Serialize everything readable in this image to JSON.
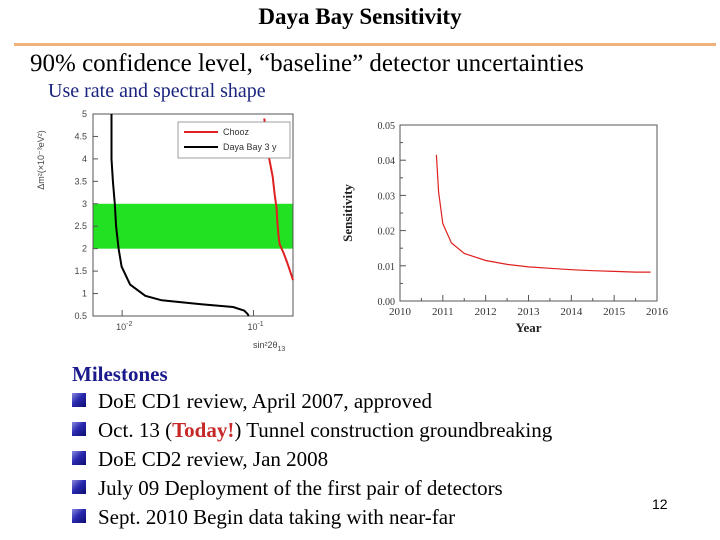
{
  "slide": {
    "title": "Daya Bay Sensitivity",
    "subtitle": "90% confidence level, “baseline” detector uncertainties",
    "use_line": "Use rate and spectral shape",
    "page_number": "12"
  },
  "colors": {
    "red_curve": "#e02020",
    "black_curve": "#000000",
    "band": "#22e022",
    "title_rule": "#f0b27a",
    "heading": "#1a1a8c",
    "today": "#c62828"
  },
  "milestones": {
    "heading": "Milestones",
    "items": [
      {
        "text": "DoE CD1 review, April 2007, approved"
      },
      {
        "before": "Oct. 13 (",
        "highlight": "Today!",
        "after": ") Tunnel construction groundbreaking"
      },
      {
        "text": "DoE CD2 review, Jan 2008"
      },
      {
        "text": "July 09 Deployment of the first pair of detectors"
      },
      {
        "text": "Sept. 2010 Begin data taking with near-far"
      }
    ]
  },
  "chart_data": [
    {
      "type": "line",
      "xscale": "log",
      "xlim": [
        0.006,
        0.2
      ],
      "ylim": [
        0.5,
        5
      ],
      "xlabel": "sin²2θ",
      "xlabel_sub": "13",
      "ylabel": "Δm²(×10⁻³eV²)",
      "y_ticks": [
        "0.5",
        "1",
        "1.5",
        "2",
        "2.5",
        "3",
        "3.5",
        "4",
        "4.5",
        "5"
      ],
      "y_tick_values": [
        0.5,
        1,
        1.5,
        2,
        2.5,
        3,
        3.5,
        4,
        4.5,
        5
      ],
      "x_tick_labels": [
        {
          "value": 0.01,
          "label": "10",
          "exp": "-2"
        },
        {
          "value": 0.1,
          "label": "10",
          "exp": "-1"
        }
      ],
      "band": {
        "y_from": 2.0,
        "y_to": 3.0
      },
      "legend_position": "top-right",
      "series": [
        {
          "name": "Chooz",
          "color": "#e02020",
          "points": [
            [
              0.121,
              4.9
            ],
            [
              0.125,
              4.5
            ],
            [
              0.13,
              4.1
            ],
            [
              0.14,
              3.6
            ],
            [
              0.145,
              3.2
            ],
            [
              0.15,
              2.9
            ],
            [
              0.152,
              2.6
            ],
            [
              0.155,
              2.3
            ],
            [
              0.158,
              2.1
            ],
            [
              0.17,
              1.9
            ],
            [
              0.18,
              1.7
            ],
            [
              0.19,
              1.5
            ],
            [
              0.2,
              1.3
            ]
          ]
        },
        {
          "name": "Daya Bay 3 y",
          "color": "#000000",
          "points": [
            [
              0.0083,
              5.0
            ],
            [
              0.0083,
              4.0
            ],
            [
              0.0085,
              3.5
            ],
            [
              0.0088,
              3.0
            ],
            [
              0.009,
              2.5
            ],
            [
              0.0094,
              2.0
            ],
            [
              0.0099,
              1.6
            ],
            [
              0.0115,
              1.2
            ],
            [
              0.015,
              0.95
            ],
            [
              0.02,
              0.85
            ],
            [
              0.04,
              0.76
            ],
            [
              0.07,
              0.7
            ],
            [
              0.085,
              0.62
            ],
            [
              0.09,
              0.55
            ],
            [
              0.092,
              0.5
            ]
          ]
        }
      ]
    },
    {
      "type": "line",
      "xlabel": "Year",
      "ylabel": "Sensitivity",
      "xlim": [
        2010,
        2016
      ],
      "ylim": [
        0,
        0.05
      ],
      "x_ticks": [
        2010,
        2011,
        2012,
        2013,
        2014,
        2015,
        2016
      ],
      "y_ticks": [
        0.0,
        0.01,
        0.02,
        0.03,
        0.04,
        0.05
      ],
      "y_tick_labels": [
        "0.00",
        "0.01",
        "0.02",
        "0.03",
        "0.04",
        "0.05"
      ],
      "series": [
        {
          "name": "Sensitivity",
          "color": "#e02020",
          "points": [
            [
              2010.85,
              0.0415
            ],
            [
              2010.9,
              0.031
            ],
            [
              2011.0,
              0.022
            ],
            [
              2011.2,
              0.0165
            ],
            [
              2011.5,
              0.0135
            ],
            [
              2012.0,
              0.0115
            ],
            [
              2012.5,
              0.0104
            ],
            [
              2013.0,
              0.0097
            ],
            [
              2013.5,
              0.0093
            ],
            [
              2014.0,
              0.0089
            ],
            [
              2014.5,
              0.0086
            ],
            [
              2015.0,
              0.0084
            ],
            [
              2015.5,
              0.0082
            ],
            [
              2015.85,
              0.0082
            ]
          ]
        }
      ]
    }
  ]
}
